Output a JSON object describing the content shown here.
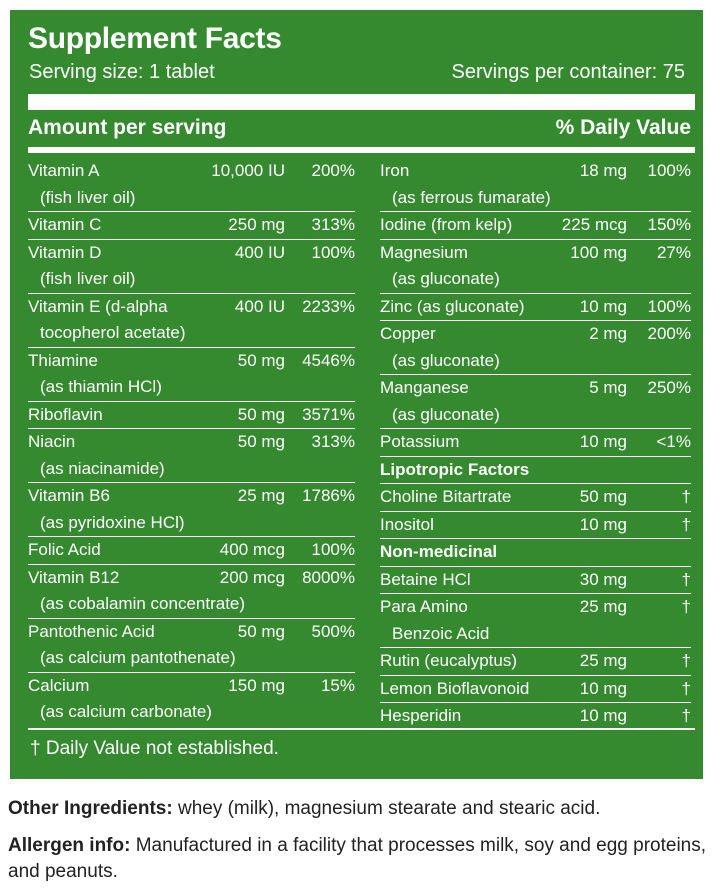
{
  "title": "Supplement Facts",
  "serving_size": "Serving size: 1 tablet",
  "servings_per_container": "Servings per container: 75",
  "amount_header": "Amount per serving",
  "dv_header": "% Daily Value",
  "left_items": [
    {
      "name": "Vitamin A",
      "amount": "10,000 IU",
      "dv": "200%",
      "sub": "(fish liver oil)"
    },
    {
      "name": "Vitamin C",
      "amount": "250 mg",
      "dv": "313%",
      "sub": ""
    },
    {
      "name": "Vitamin D",
      "amount": "400 IU",
      "dv": "100%",
      "sub": "(fish liver oil)"
    },
    {
      "name": "Vitamin E (d-alpha",
      "amount": "400 IU",
      "dv": "2233%",
      "sub": "tocopherol acetate)"
    },
    {
      "name": "Thiamine",
      "amount": "50 mg",
      "dv": "4546%",
      "sub": "(as thiamin HCl)"
    },
    {
      "name": "Riboflavin",
      "amount": "50 mg",
      "dv": "3571%",
      "sub": ""
    },
    {
      "name": "Niacin",
      "amount": "50 mg",
      "dv": "313%",
      "sub": "(as niacinamide)"
    },
    {
      "name": "Vitamin B6",
      "amount": "25 mg",
      "dv": "1786%",
      "sub": "(as pyridoxine HCl)"
    },
    {
      "name": "Folic Acid",
      "amount": "400 mcg",
      "dv": "100%",
      "sub": ""
    },
    {
      "name": "Vitamin B12",
      "amount": "200 mcg",
      "dv": "8000%",
      "sub": "(as cobalamin concentrate)"
    },
    {
      "name": "Pantothenic Acid",
      "amount": "50 mg",
      "dv": "500%",
      "sub": "(as calcium pantothenate)"
    },
    {
      "name": "Calcium",
      "amount": "150 mg",
      "dv": "15%",
      "sub": "(as calcium carbonate)"
    }
  ],
  "right_items": [
    {
      "name": "Iron",
      "amount": "18 mg",
      "dv": "100%",
      "sub": "(as ferrous fumarate)"
    },
    {
      "name": "Iodine (from kelp)",
      "amount": "225 mcg",
      "dv": "150%",
      "sub": ""
    },
    {
      "name": "Magnesium",
      "amount": "100 mg",
      "dv": "27%",
      "sub": "(as gluconate)"
    },
    {
      "name": "Zinc (as gluconate)",
      "amount": "10 mg",
      "dv": "100%",
      "sub": ""
    },
    {
      "name": "Copper",
      "amount": "2 mg",
      "dv": "200%",
      "sub": "(as gluconate)"
    },
    {
      "name": "Manganese",
      "amount": "5 mg",
      "dv": "250%",
      "sub": "(as gluconate)"
    },
    {
      "name": "Potassium",
      "amount": "10 mg",
      "dv": "<1%",
      "sub": ""
    },
    {
      "heading": "Lipotropic Factors"
    },
    {
      "name": "Choline Bitartrate",
      "amount": "50 mg",
      "dv": "†",
      "sub": ""
    },
    {
      "name": "Inositol",
      "amount": "10 mg",
      "dv": "†",
      "sub": ""
    },
    {
      "heading": "Non-medicinal"
    },
    {
      "name": "Betaine HCl",
      "amount": "30 mg",
      "dv": "†",
      "sub": ""
    },
    {
      "name": "Para Amino",
      "amount": "25 mg",
      "dv": "†",
      "sub": "Benzoic Acid"
    },
    {
      "name": "Rutin (eucalyptus)",
      "amount": "25 mg",
      "dv": "†",
      "sub": ""
    },
    {
      "name": "Lemon Bioflavonoid",
      "amount": "10 mg",
      "dv": "†",
      "sub": ""
    },
    {
      "name": "Hesperidin",
      "amount": "10 mg",
      "dv": "†",
      "sub": ""
    }
  ],
  "footnote": "† Daily Value not established.",
  "other_ingredients": {
    "label": "Other Ingredients:",
    "text": " whey (milk), magnesium stearate and stearic acid."
  },
  "allergen": {
    "label": "Allergen info:",
    "text": " Manufactured in a facility that processes milk, soy and egg proteins, and peanuts."
  },
  "colors": {
    "panel_green": "#35892f",
    "text_white": "#ffffff"
  }
}
